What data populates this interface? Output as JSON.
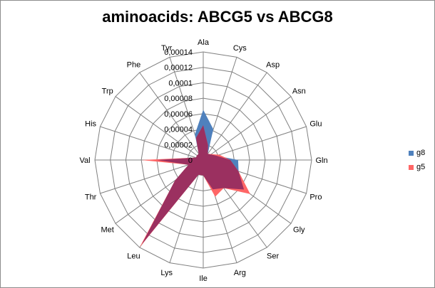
{
  "chart_data": {
    "type": "radar",
    "title": "aminoacids: ABCG5 vs ABCG8",
    "categories": [
      "Ala",
      "Cys",
      "Asp",
      "Asn",
      "Glu",
      "Gln",
      "Pro",
      "Gly",
      "Ser",
      "Arg",
      "Ile",
      "Lys",
      "Leu",
      "Met",
      "Thr",
      "Val",
      "His",
      "Trp",
      "Phe",
      "Tyr"
    ],
    "rmax": 0.00014,
    "tick_labels": [
      "0",
      "0,00002",
      "0,00004",
      "0,00006",
      "0,00008",
      "0,0001",
      "0,00012",
      "0,00014"
    ],
    "series": [
      {
        "name": "g5",
        "color": "#ff6666",
        "values": [
          4.5e-05,
          2e-05,
          1e-05,
          1.3e-05,
          2.2e-05,
          3.5e-05,
          4.8e-05,
          7.5e-05,
          4.5e-05,
          5e-05,
          2e-05,
          2e-05,
          0.00014,
          4.5e-05,
          2e-05,
          8e-05,
          1e-05,
          1e-05,
          1e-05,
          3e-05
        ]
      },
      {
        "name": "g8",
        "color": "#4f81bd",
        "values": [
          6.5e-05,
          4.2e-05,
          1e-05,
          1.2e-05,
          1.8e-05,
          4.5e-05,
          4.8e-05,
          6.5e-05,
          4.5e-05,
          4e-05,
          2e-05,
          2e-05,
          0.000135,
          4.5e-05,
          2e-05,
          6e-05,
          1e-05,
          1e-05,
          1e-05,
          3.5e-05
        ]
      }
    ],
    "overlap_color": "#9b3060",
    "legend": [
      {
        "name": "g8",
        "color": "#4f81bd"
      },
      {
        "name": "g5",
        "color": "#ff6666"
      }
    ],
    "legend_position": "right",
    "grid": true
  }
}
